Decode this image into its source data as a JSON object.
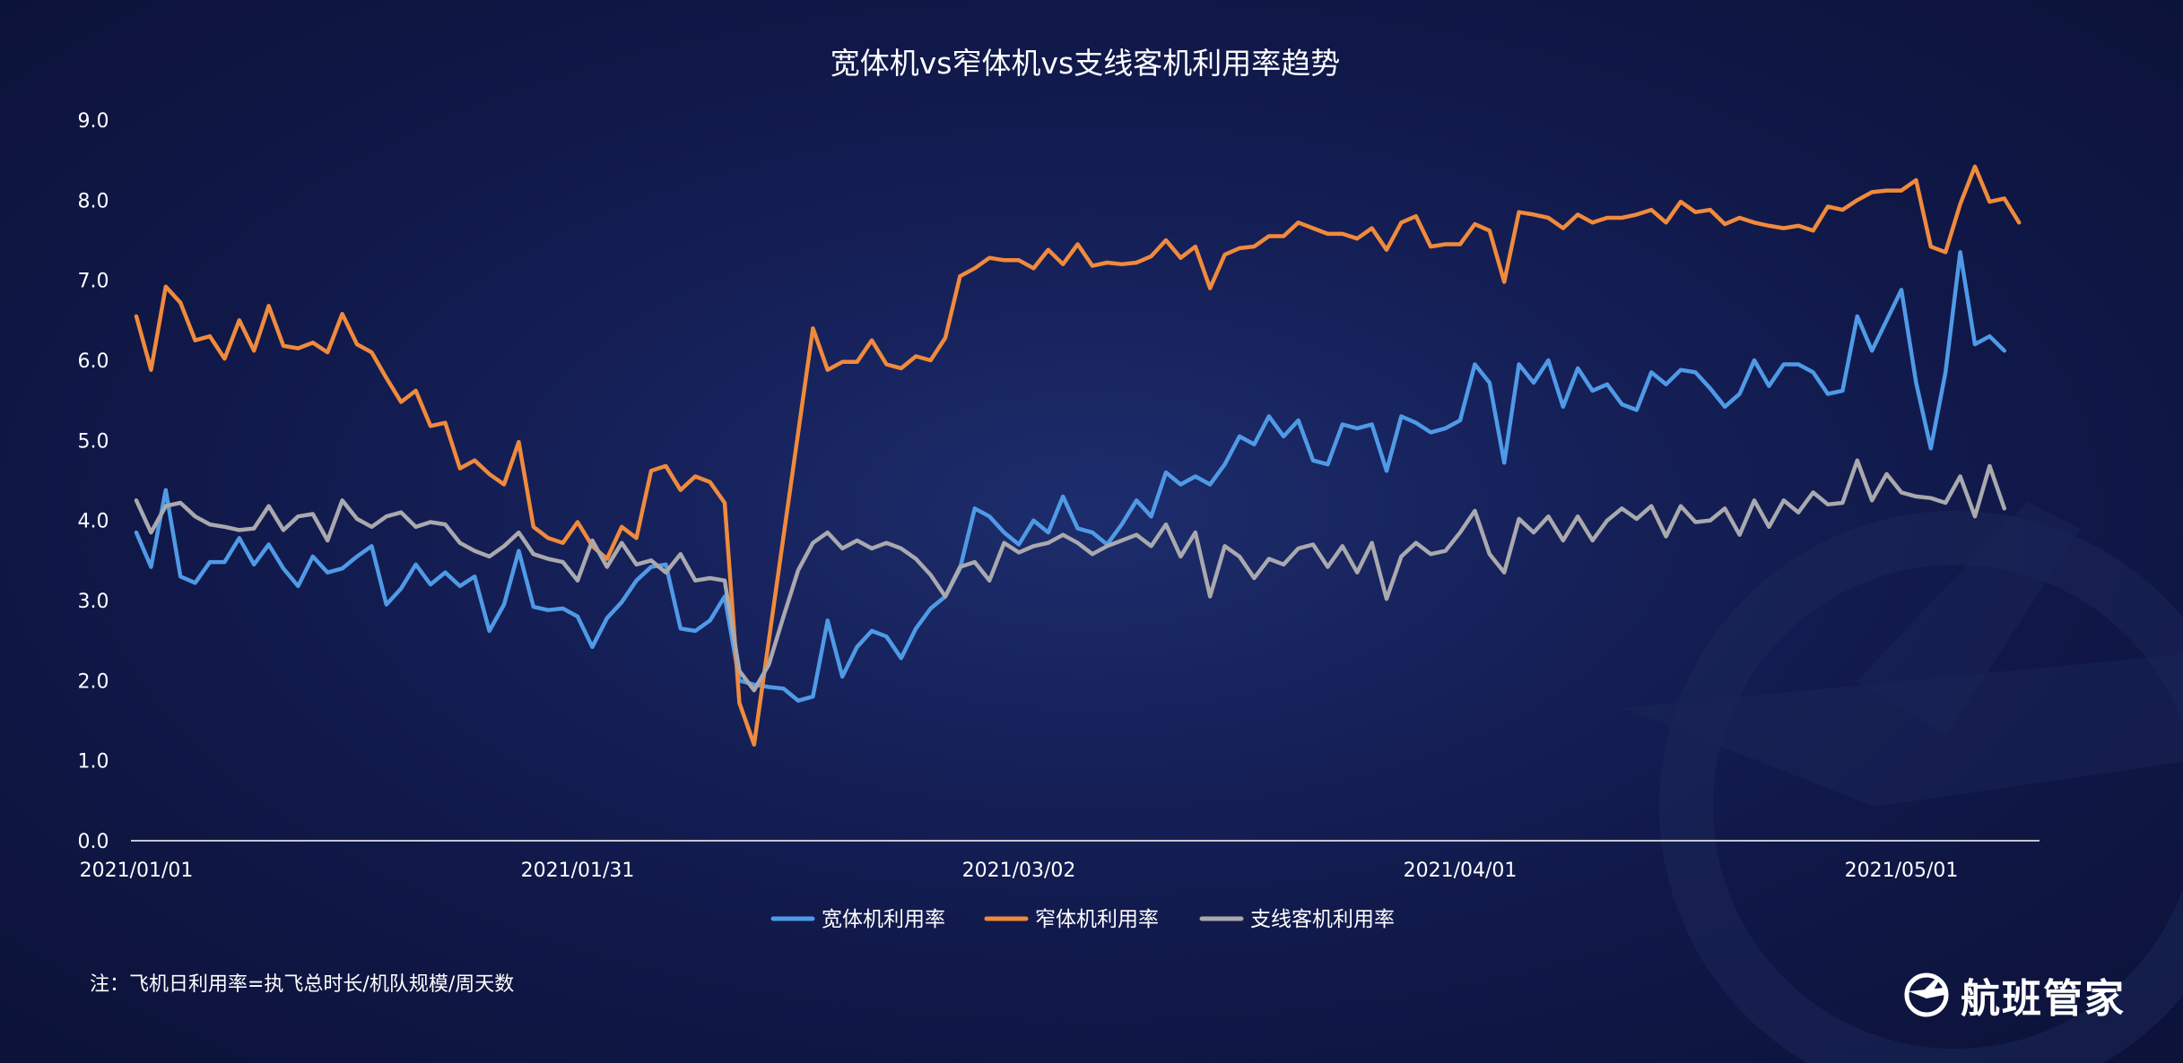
{
  "chart_data": {
    "type": "line",
    "title": "宽体机vs窄体机vs支线客机利用率趋势",
    "xlabel": "",
    "ylabel": "",
    "ylim": [
      0,
      9
    ],
    "yticks": [
      "0.0",
      "1.0",
      "2.0",
      "3.0",
      "4.0",
      "5.0",
      "6.0",
      "7.0",
      "8.0",
      "9.0"
    ],
    "x_start": "2021-01-01",
    "x_end": "2021-05-10",
    "xtick_labels": [
      "2021/01/01",
      "2021/01/31",
      "2021/03/02",
      "2021/04/01",
      "2021/05/01"
    ],
    "xtick_dates": [
      "2021-01-01",
      "2021-01-31",
      "2021-03-02",
      "2021-04-01",
      "2021-05-01"
    ],
    "legend_position": "bottom-center",
    "grid": false,
    "series": [
      {
        "name": "宽体机利用率",
        "color": "#4f9ae6",
        "values": [
          3.85,
          3.42,
          4.38,
          3.3,
          3.22,
          3.48,
          3.48,
          3.78,
          3.45,
          3.7,
          3.4,
          3.18,
          3.55,
          3.35,
          3.4,
          3.55,
          3.68,
          2.95,
          3.15,
          3.45,
          3.2,
          3.35,
          3.18,
          3.3,
          2.62,
          2.95,
          3.62,
          2.92,
          2.88,
          2.9,
          2.8,
          2.42,
          2.78,
          2.98,
          3.25,
          3.42,
          3.45,
          2.65,
          2.62,
          2.75,
          3.05,
          2.0,
          1.95,
          1.92,
          1.9,
          1.75,
          1.8,
          2.75,
          2.05,
          2.42,
          2.62,
          2.55,
          2.28,
          2.65,
          2.9,
          3.05,
          3.4,
          4.15,
          4.05,
          3.85,
          3.7,
          4.0,
          3.85,
          4.3,
          3.9,
          3.85,
          3.7,
          3.95,
          4.25,
          4.05,
          4.6,
          4.45,
          4.55,
          4.45,
          4.7,
          5.05,
          4.95,
          5.3,
          5.05,
          5.25,
          4.75,
          4.7,
          5.2,
          5.15,
          5.2,
          4.62,
          5.3,
          5.22,
          5.1,
          5.15,
          5.25,
          5.95,
          5.72,
          4.72,
          5.95,
          5.72,
          6.0,
          5.42,
          5.9,
          5.62,
          5.7,
          5.45,
          5.38,
          5.85,
          5.7,
          5.88,
          5.85,
          5.65,
          5.42,
          5.58,
          6.0,
          5.68,
          5.95,
          5.95,
          5.85,
          5.58,
          5.62,
          6.55,
          6.12,
          6.5,
          6.88,
          5.72,
          4.9,
          5.85,
          7.35,
          6.2,
          6.3,
          6.12
        ]
      },
      {
        "name": "窄体机利用率",
        "color": "#f08a3c",
        "values": [
          6.55,
          5.88,
          6.92,
          6.72,
          6.25,
          6.3,
          6.02,
          6.5,
          6.12,
          6.68,
          6.18,
          6.15,
          6.22,
          6.1,
          6.58,
          6.2,
          6.1,
          5.78,
          5.48,
          5.62,
          5.18,
          5.22,
          4.65,
          4.75,
          4.58,
          4.45,
          4.98,
          3.92,
          3.78,
          3.72,
          3.98,
          3.68,
          3.52,
          3.92,
          3.78,
          4.62,
          4.68,
          4.38,
          4.55,
          4.48,
          4.22,
          1.72,
          1.2,
          2.5,
          3.8,
          5.1,
          6.4,
          5.88,
          5.98,
          5.98,
          6.25,
          5.95,
          5.9,
          6.05,
          6.0,
          6.28,
          7.05,
          7.15,
          7.28,
          7.25,
          7.25,
          7.15,
          7.38,
          7.2,
          7.45,
          7.18,
          7.22,
          7.2,
          7.22,
          7.3,
          7.5,
          7.28,
          7.42,
          6.9,
          7.32,
          7.4,
          7.42,
          7.55,
          7.55,
          7.72,
          7.65,
          7.58,
          7.58,
          7.52,
          7.65,
          7.38,
          7.72,
          7.8,
          7.42,
          7.45,
          7.45,
          7.7,
          7.62,
          6.98,
          7.85,
          7.82,
          7.78,
          7.65,
          7.82,
          7.72,
          7.78,
          7.78,
          7.82,
          7.88,
          7.72,
          7.98,
          7.85,
          7.88,
          7.7,
          7.78,
          7.72,
          7.68,
          7.65,
          7.68,
          7.62,
          7.92,
          7.88,
          8.0,
          8.1,
          8.12,
          8.12,
          8.25,
          7.42,
          7.35,
          7.95,
          8.42,
          7.98,
          8.02,
          7.72
        ]
      },
      {
        "name": "支线客机利用率",
        "color": "#a9a9ae",
        "values": [
          4.25,
          3.85,
          4.18,
          4.22,
          4.05,
          3.95,
          3.92,
          3.88,
          3.9,
          4.18,
          3.88,
          4.05,
          4.08,
          3.75,
          4.25,
          4.02,
          3.92,
          4.05,
          4.1,
          3.92,
          3.98,
          3.95,
          3.72,
          3.62,
          3.55,
          3.68,
          3.85,
          3.58,
          3.52,
          3.48,
          3.25,
          3.75,
          3.42,
          3.72,
          3.45,
          3.5,
          3.35,
          3.58,
          3.25,
          3.28,
          3.25,
          2.12,
          1.88,
          2.2,
          2.8,
          3.38,
          3.72,
          3.85,
          3.65,
          3.75,
          3.65,
          3.72,
          3.65,
          3.52,
          3.32,
          3.05,
          3.42,
          3.48,
          3.25,
          3.72,
          3.6,
          3.68,
          3.72,
          3.82,
          3.72,
          3.58,
          3.68,
          3.75,
          3.82,
          3.68,
          3.95,
          3.55,
          3.85,
          3.05,
          3.68,
          3.55,
          3.28,
          3.52,
          3.45,
          3.65,
          3.7,
          3.42,
          3.68,
          3.35,
          3.72,
          3.02,
          3.55,
          3.72,
          3.58,
          3.62,
          3.85,
          4.12,
          3.58,
          3.35,
          4.02,
          3.85,
          4.05,
          3.75,
          4.05,
          3.75,
          4.0,
          4.15,
          4.02,
          4.18,
          3.8,
          4.18,
          3.98,
          4.0,
          4.15,
          3.82,
          4.25,
          3.92,
          4.25,
          4.1,
          4.35,
          4.2,
          4.22,
          4.75,
          4.25,
          4.58,
          4.35,
          4.3,
          4.28,
          4.22,
          4.55,
          4.05,
          4.68,
          4.15
        ]
      }
    ]
  },
  "footer": {
    "note": "注：飞机日利用率=执飞总时长/机队规模/周天数",
    "brand": "航班管家"
  }
}
